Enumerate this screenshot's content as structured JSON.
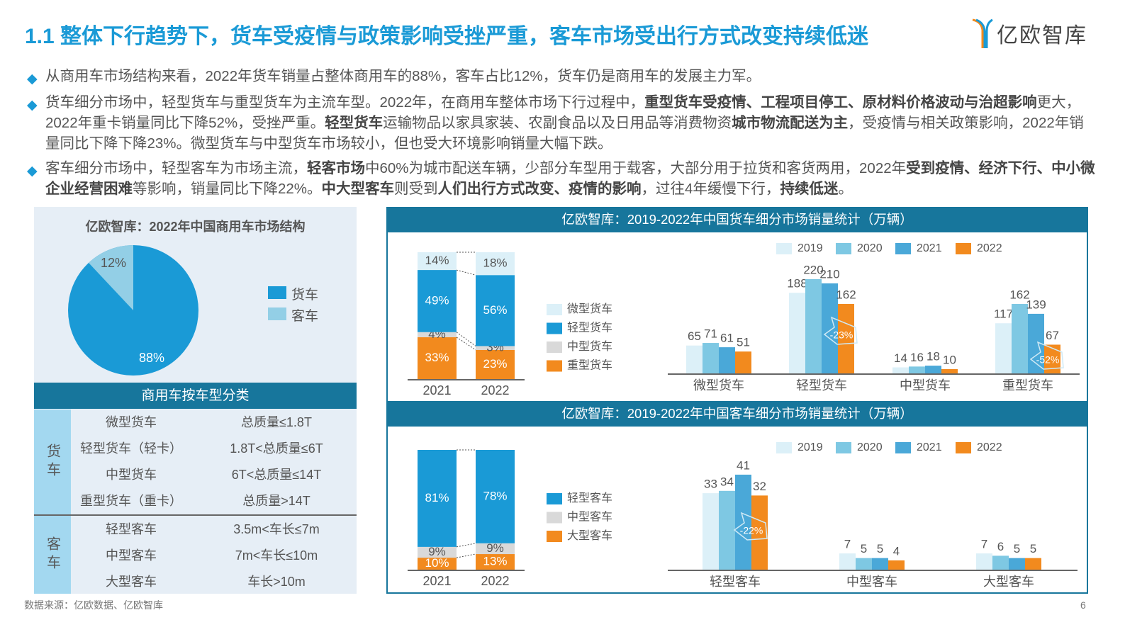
{
  "title": "1.1 整体下行趋势下，货车受疫情与政策影响受挫严重，客车市场受出行方式改变持续低迷",
  "logo_text": "亿欧智库",
  "bullets": [
    [
      {
        "t": "从商用车市场结构来看，2022年货车销量占整体商用车的88%，客车占比12%，货车仍是商用车的发展主力军。",
        "b": false
      }
    ],
    [
      {
        "t": "货车细分市场中，轻型货车与重型货车为主流车型。2022年，在商用车整体市场下行过程中，",
        "b": false
      },
      {
        "t": "重型货车受疫情、工程项目停工、原材料价格波动与治超影响",
        "b": true
      },
      {
        "t": "更大，2022年重卡销量同比下降52%，受挫严重。",
        "b": false
      },
      {
        "t": "轻型货车",
        "b": true
      },
      {
        "t": "运输物品以家具家装、农副食品以及日用品等消费物资",
        "b": false
      },
      {
        "t": "城市物流配送为主",
        "b": true
      },
      {
        "t": "，受疫情与相关政策影响，2022年销量同比下降下降23%。微型货车与中型货车市场较小，但也受大环境影响销量大幅下跌。",
        "b": false
      }
    ],
    [
      {
        "t": "客车细分市场中，轻型客车为市场主流，",
        "b": false
      },
      {
        "t": "轻客市场",
        "b": true
      },
      {
        "t": "中60%为城市配送车辆，少部分车型用于载客，大部分用于拉货和客货两用，2022年",
        "b": false
      },
      {
        "t": "受到疫情、经济下行、中小微企业经营困难",
        "b": true
      },
      {
        "t": "等影响，销量同比下降22%。",
        "b": false
      },
      {
        "t": "中大型客车",
        "b": true
      },
      {
        "t": "则受到",
        "b": false
      },
      {
        "t": "人们出行方式改变、疫情的影响",
        "b": true
      },
      {
        "t": "，过往4年缓慢下行，",
        "b": false
      },
      {
        "t": "持续低迷",
        "b": true
      },
      {
        "t": "。",
        "b": false
      }
    ]
  ],
  "classification": {
    "header": "商用车按车型分类",
    "groups": [
      {
        "name": "货车",
        "rows": [
          [
            "微型货车",
            "总质量≤1.8T"
          ],
          [
            "轻型货车（轻卡）",
            "1.8T<总质量≤6T"
          ],
          [
            "中型货车",
            "6T<总质量≤14T"
          ],
          [
            "重型货车（重卡）",
            "总质量>14T"
          ]
        ]
      },
      {
        "name": "客车",
        "rows": [
          [
            "轻型客车",
            "3.5m<车长≤7m"
          ],
          [
            "中型客车",
            "7m<车长≤10m"
          ],
          [
            "大型客车",
            "车长>10m"
          ]
        ]
      }
    ]
  },
  "source": "数据来源：亿欧数据、亿欧智库",
  "page_number": "6",
  "colors": {
    "accent": "#1a9ad6",
    "band": "#17769c",
    "y2019": "#dcf0f8",
    "y2020": "#7ec8e3",
    "y2021": "#4aa8d8",
    "y2022": "#f28a1e",
    "gray": "#d9d9d9",
    "pie_minor": "#93cfe6"
  },
  "chart_data": [
    {
      "type": "pie",
      "title": "亿欧智库：2022年中国商用车市场结构",
      "slices": [
        {
          "label": "货车",
          "value": 88,
          "text": "88%"
        },
        {
          "label": "客车",
          "value": 12,
          "text": "12%"
        }
      ]
    },
    {
      "type": "bar",
      "stacked": true,
      "title": "亿欧智库：2019-2022年中国货车细分市场销量统计（万辆）",
      "categories": [
        "2021",
        "2022"
      ],
      "series": [
        {
          "name": "重型货车",
          "values": [
            33,
            23
          ],
          "labels": [
            "33%",
            "23%"
          ]
        },
        {
          "name": "中型货车",
          "values": [
            4,
            3
          ],
          "labels": [
            "4%",
            "3%"
          ]
        },
        {
          "name": "轻型货车",
          "values": [
            49,
            56
          ],
          "labels": [
            "49%",
            "56%"
          ]
        },
        {
          "name": "微型货车",
          "values": [
            14,
            18
          ],
          "labels": [
            "14%",
            "18%"
          ]
        }
      ],
      "legend": [
        "微型货车",
        "轻型货车",
        "中型货车",
        "重型货车"
      ]
    },
    {
      "type": "bar",
      "categories": [
        "微型货车",
        "轻型货车",
        "中型货车",
        "重型货车"
      ],
      "series": [
        {
          "name": "2019",
          "values": [
            65,
            188,
            14,
            117
          ]
        },
        {
          "name": "2020",
          "values": [
            71,
            220,
            16,
            162
          ]
        },
        {
          "name": "2021",
          "values": [
            61,
            210,
            18,
            139
          ]
        },
        {
          "name": "2022",
          "values": [
            51,
            162,
            10,
            67
          ]
        }
      ],
      "annotations": [
        {
          "category": "轻型货车",
          "text": "-23%"
        },
        {
          "category": "重型货车",
          "text": "-52%"
        }
      ]
    },
    {
      "type": "bar",
      "stacked": true,
      "title": "亿欧智库：2019-2022年中国客车细分市场销量统计（万辆）",
      "categories": [
        "2021",
        "2022"
      ],
      "series": [
        {
          "name": "大型客车",
          "values": [
            10,
            13
          ],
          "labels": [
            "10%",
            "13%"
          ]
        },
        {
          "name": "中型客车",
          "values": [
            9,
            9
          ],
          "labels": [
            "9%",
            "9%"
          ]
        },
        {
          "name": "轻型客车",
          "values": [
            81,
            78
          ],
          "labels": [
            "81%",
            "78%"
          ]
        }
      ],
      "legend": [
        "轻型客车",
        "中型客车",
        "大型客车"
      ]
    },
    {
      "type": "bar",
      "categories": [
        "轻型客车",
        "中型客车",
        "大型客车"
      ],
      "series": [
        {
          "name": "2019",
          "values": [
            33,
            7,
            7
          ]
        },
        {
          "name": "2020",
          "values": [
            34,
            5,
            6
          ]
        },
        {
          "name": "2021",
          "values": [
            41,
            5,
            5
          ]
        },
        {
          "name": "2022",
          "values": [
            32,
            4,
            5
          ]
        }
      ],
      "annotations": [
        {
          "category": "轻型客车",
          "text": "-22%"
        }
      ]
    }
  ]
}
